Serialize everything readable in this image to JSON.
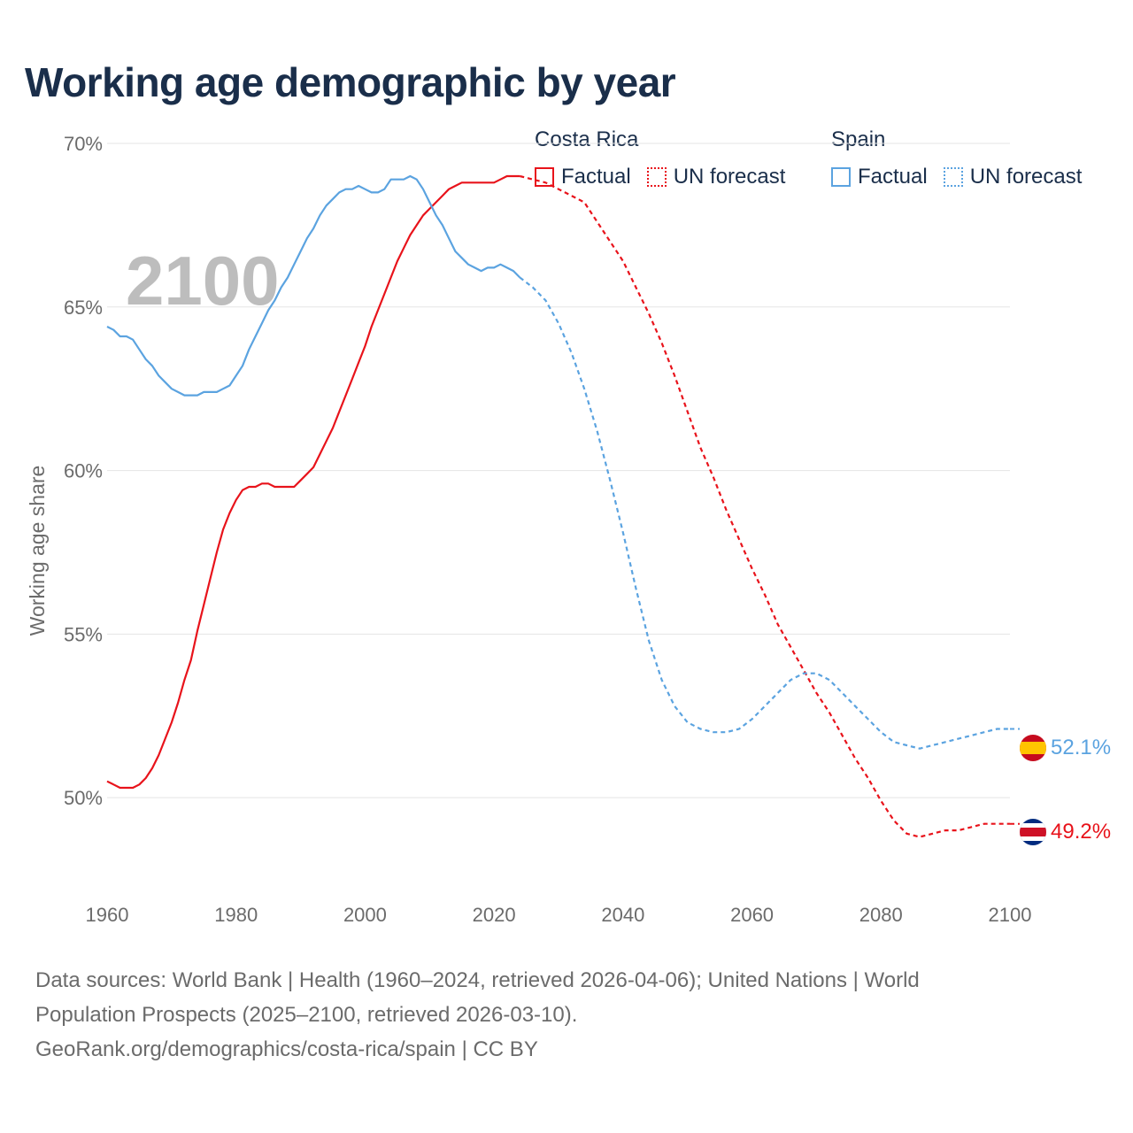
{
  "title": "Working age demographic by year",
  "legend": {
    "groups": [
      {
        "country": "Costa Rica",
        "factual_label": "Factual",
        "forecast_label": "UN forecast",
        "color": "#e8131b"
      },
      {
        "country": "Spain",
        "factual_label": "Factual",
        "forecast_label": "UN forecast",
        "color": "#5ba3e0"
      }
    ]
  },
  "footer": {
    "line1": "Data sources: World Bank | Health (1960–2024, retrieved 2026-04-06); United Nations | World",
    "line2": "Population Prospects (2025–2100, retrieved 2026-03-10).",
    "line3": "GeoRank.org/demographics/costa-rica/spain | CC BY"
  },
  "chart_data": {
    "type": "line",
    "title": "Working age demographic by year",
    "ylabel": "Working age share",
    "xlabel": "",
    "xlim": [
      1960,
      2100
    ],
    "ylim": [
      47.0,
      70.0
    ],
    "xticks": [
      1960,
      1980,
      2000,
      2020,
      2040,
      2060,
      2080,
      2100
    ],
    "xtick_labels": [
      "1960",
      "1980",
      "2000",
      "2020",
      "2040",
      "2060",
      "2080",
      "2100"
    ],
    "yticks": [
      50,
      55,
      60,
      65,
      70
    ],
    "ytick_labels": [
      "50%",
      "55%",
      "60%",
      "65%",
      "70%"
    ],
    "year_watermark": "2100",
    "series": [
      {
        "name": "Costa Rica",
        "color": "#e8131b",
        "end_label": "49.2%",
        "flag": "costa-rica-flag",
        "factual": {
          "x": [
            1960,
            1961,
            1962,
            1963,
            1964,
            1965,
            1966,
            1967,
            1968,
            1969,
            1970,
            1971,
            1972,
            1973,
            1974,
            1975,
            1976,
            1977,
            1978,
            1979,
            1980,
            1981,
            1982,
            1983,
            1984,
            1985,
            1986,
            1987,
            1988,
            1989,
            1990,
            1991,
            1992,
            1993,
            1994,
            1995,
            1996,
            1997,
            1998,
            1999,
            2000,
            2001,
            2002,
            2003,
            2004,
            2005,
            2006,
            2007,
            2008,
            2009,
            2010,
            2011,
            2012,
            2013,
            2014,
            2015,
            2016,
            2017,
            2018,
            2019,
            2020,
            2021,
            2022,
            2023,
            2024
          ],
          "y": [
            50.5,
            50.4,
            50.3,
            50.3,
            50.3,
            50.4,
            50.6,
            50.9,
            51.3,
            51.8,
            52.3,
            52.9,
            53.6,
            54.2,
            55.1,
            55.9,
            56.7,
            57.5,
            58.2,
            58.7,
            59.1,
            59.4,
            59.5,
            59.5,
            59.6,
            59.6,
            59.5,
            59.5,
            59.5,
            59.5,
            59.7,
            59.9,
            60.1,
            60.5,
            60.9,
            61.3,
            61.8,
            62.3,
            62.8,
            63.3,
            63.8,
            64.4,
            64.9,
            65.4,
            65.9,
            66.4,
            66.8,
            67.2,
            67.5,
            67.8,
            68.0,
            68.2,
            68.4,
            68.6,
            68.7,
            68.8,
            68.8,
            68.8,
            68.8,
            68.8,
            68.8,
            68.9,
            69.0,
            69.0,
            69.0
          ]
        },
        "forecast": {
          "x": [
            2024,
            2026,
            2028,
            2030,
            2032,
            2034,
            2036,
            2038,
            2040,
            2042,
            2044,
            2046,
            2048,
            2050,
            2052,
            2054,
            2056,
            2058,
            2060,
            2062,
            2064,
            2066,
            2068,
            2070,
            2072,
            2074,
            2076,
            2078,
            2080,
            2082,
            2084,
            2086,
            2088,
            2090,
            2092,
            2094,
            2096,
            2098,
            2100
          ],
          "y": [
            69.0,
            68.9,
            68.8,
            68.6,
            68.4,
            68.2,
            67.6,
            67.0,
            66.4,
            65.6,
            64.8,
            63.9,
            62.9,
            61.8,
            60.7,
            59.8,
            58.8,
            57.9,
            57.0,
            56.2,
            55.3,
            54.6,
            53.9,
            53.2,
            52.6,
            51.9,
            51.2,
            50.6,
            49.9,
            49.3,
            48.9,
            48.8,
            48.9,
            49.0,
            49.0,
            49.1,
            49.2,
            49.2,
            49.2
          ]
        }
      },
      {
        "name": "Spain",
        "color": "#5ba3e0",
        "end_label": "52.1%",
        "flag": "spain-flag",
        "factual": {
          "x": [
            1960,
            1961,
            1962,
            1963,
            1964,
            1965,
            1966,
            1967,
            1968,
            1969,
            1970,
            1971,
            1972,
            1973,
            1974,
            1975,
            1976,
            1977,
            1978,
            1979,
            1980,
            1981,
            1982,
            1983,
            1984,
            1985,
            1986,
            1987,
            1988,
            1989,
            1990,
            1991,
            1992,
            1993,
            1994,
            1995,
            1996,
            1997,
            1998,
            1999,
            2000,
            2001,
            2002,
            2003,
            2004,
            2005,
            2006,
            2007,
            2008,
            2009,
            2010,
            2011,
            2012,
            2013,
            2014,
            2015,
            2016,
            2017,
            2018,
            2019,
            2020,
            2021,
            2022,
            2023,
            2024
          ],
          "y": [
            64.4,
            64.3,
            64.1,
            64.1,
            64.0,
            63.7,
            63.4,
            63.2,
            62.9,
            62.7,
            62.5,
            62.4,
            62.3,
            62.3,
            62.3,
            62.4,
            62.4,
            62.4,
            62.5,
            62.6,
            62.9,
            63.2,
            63.7,
            64.1,
            64.5,
            64.9,
            65.2,
            65.6,
            65.9,
            66.3,
            66.7,
            67.1,
            67.4,
            67.8,
            68.1,
            68.3,
            68.5,
            68.6,
            68.6,
            68.7,
            68.6,
            68.5,
            68.5,
            68.6,
            68.9,
            68.9,
            68.9,
            69.0,
            68.9,
            68.6,
            68.2,
            67.8,
            67.5,
            67.1,
            66.7,
            66.5,
            66.3,
            66.2,
            66.1,
            66.2,
            66.2,
            66.3,
            66.2,
            66.1,
            65.9
          ]
        },
        "forecast": {
          "x": [
            2024,
            2026,
            2028,
            2030,
            2032,
            2034,
            2036,
            2038,
            2040,
            2042,
            2044,
            2046,
            2048,
            2050,
            2052,
            2054,
            2056,
            2058,
            2060,
            2062,
            2064,
            2066,
            2068,
            2070,
            2072,
            2074,
            2076,
            2078,
            2080,
            2082,
            2084,
            2086,
            2088,
            2090,
            2092,
            2094,
            2096,
            2098,
            2100
          ],
          "y": [
            65.9,
            65.6,
            65.2,
            64.5,
            63.6,
            62.5,
            61.2,
            59.7,
            58.1,
            56.4,
            54.8,
            53.6,
            52.8,
            52.3,
            52.1,
            52.0,
            52.0,
            52.1,
            52.4,
            52.8,
            53.2,
            53.6,
            53.8,
            53.8,
            53.6,
            53.2,
            52.8,
            52.4,
            52.0,
            51.7,
            51.6,
            51.5,
            51.6,
            51.7,
            51.8,
            51.9,
            52.0,
            52.1,
            52.1
          ]
        }
      }
    ]
  }
}
